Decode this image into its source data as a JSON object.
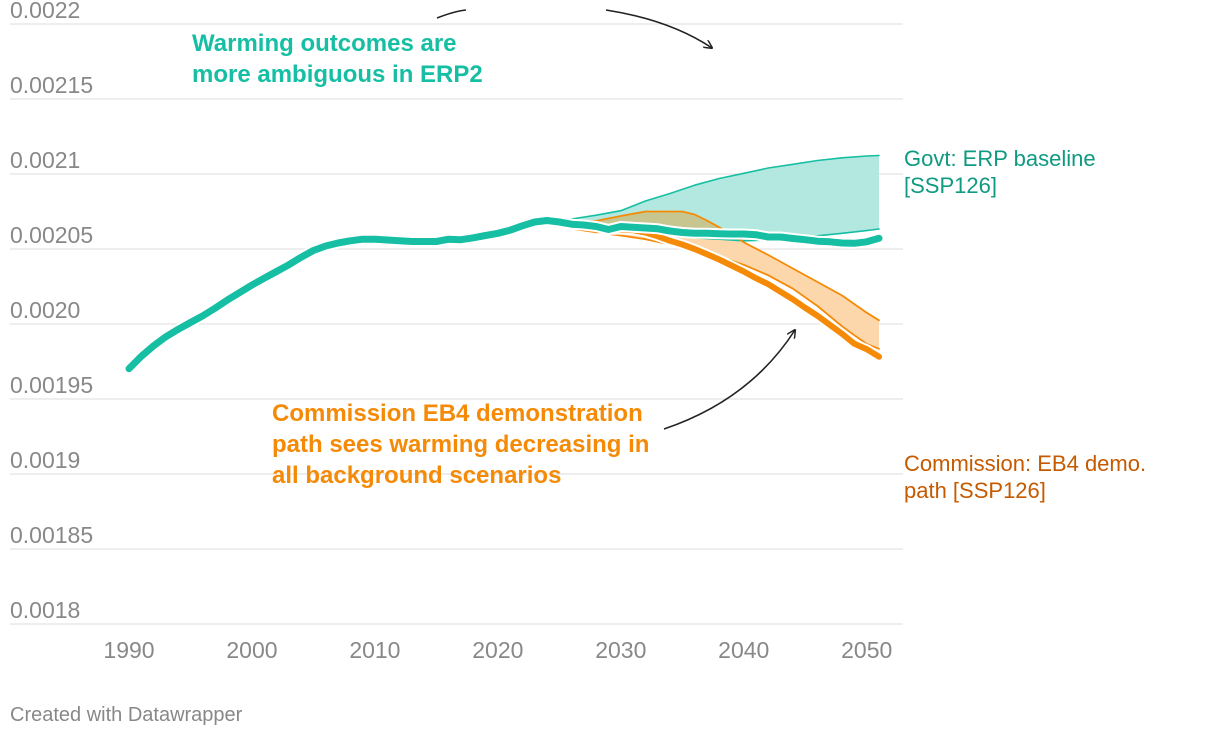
{
  "chart_data": {
    "type": "line",
    "title": "",
    "xlabel": "",
    "ylabel": "",
    "xlim": [
      1990,
      2051
    ],
    "ylim": [
      0.0018,
      0.0022
    ],
    "x_ticks": [
      1990,
      2000,
      2010,
      2020,
      2030,
      2040,
      2050
    ],
    "x_tick_labels": [
      "1990",
      "2000",
      "2010",
      "2020",
      "2030",
      "2040",
      "2050"
    ],
    "y_ticks": [
      0.0018,
      0.00185,
      0.0019,
      0.00195,
      0.002,
      0.00205,
      0.0021,
      0.00215,
      0.0022
    ],
    "y_tick_labels": [
      "0.0018",
      "0.00185",
      "0.0019",
      "0.00195",
      "0.0020",
      "0.00205",
      "0.0021",
      "0.00215",
      "0.0022"
    ],
    "grid": true,
    "colors": {
      "teal": "#16bfa3",
      "teal_dark": "#0f9a82",
      "teal_band": "#b2e8df",
      "orange": "#f58a07",
      "orange_band": "#fcd5a8",
      "orange_text": "#c55a00",
      "overlap_band": "#c7c690",
      "grid": "#e3e3e3",
      "annotation_arrow": "#222222"
    },
    "series": [
      {
        "name": "Govt: ERP baseline [SSP126]",
        "role": "main-teal",
        "x": [
          1990,
          1991,
          1992,
          1993,
          1994,
          1995,
          1996,
          1997,
          1998,
          1999,
          2000,
          2001,
          2002,
          2003,
          2004,
          2005,
          2006,
          2007,
          2008,
          2009,
          2010,
          2011,
          2012,
          2013,
          2014,
          2015,
          2016,
          2017,
          2018,
          2019,
          2020,
          2021,
          2022,
          2023,
          2024,
          2025,
          2026,
          2027,
          2028,
          2029,
          2030,
          2031,
          2032,
          2033,
          2034,
          2035,
          2036,
          2037,
          2038,
          2039,
          2040,
          2041,
          2042,
          2043,
          2044,
          2045,
          2046,
          2047,
          2048,
          2049,
          2050,
          2051
        ],
        "values": [
          0.0019702,
          0.0019785,
          0.0019855,
          0.0019915,
          0.0019965,
          0.002001,
          0.0020055,
          0.0020105,
          0.002016,
          0.002021,
          0.002026,
          0.0020305,
          0.002035,
          0.0020395,
          0.0020445,
          0.002049,
          0.002052,
          0.002054,
          0.0020555,
          0.0020565,
          0.0020565,
          0.002056,
          0.0020555,
          0.002055,
          0.002055,
          0.002055,
          0.0020565,
          0.0020562,
          0.0020575,
          0.002059,
          0.0020605,
          0.0020625,
          0.0020655,
          0.002068,
          0.002069,
          0.002068,
          0.0020665,
          0.002066,
          0.002065,
          0.002063,
          0.002065,
          0.0020645,
          0.002064,
          0.0020635,
          0.002062,
          0.002061,
          0.0020605,
          0.0020605,
          0.0020602,
          0.00206,
          0.00206,
          0.0020595,
          0.002058,
          0.002058,
          0.002057,
          0.0020562,
          0.0020552,
          0.0020548,
          0.002054,
          0.0020538,
          0.0020548,
          0.0020571
        ]
      },
      {
        "name": "ERP2 range upper",
        "role": "teal-upper",
        "x": [
          2024,
          2026,
          2028,
          2030,
          2032,
          2034,
          2036,
          2038,
          2040,
          2042,
          2044,
          2046,
          2048,
          2050,
          2051
        ],
        "values": [
          0.002069,
          0.00207,
          0.0020725,
          0.0020755,
          0.002082,
          0.002087,
          0.0020925,
          0.002097,
          0.0021005,
          0.002104,
          0.0021065,
          0.002109,
          0.0021108,
          0.002112,
          0.0021123
        ]
      },
      {
        "name": "ERP2 range lower",
        "role": "teal-lower",
        "x": [
          2024,
          2026,
          2028,
          2030,
          2032,
          2034,
          2036,
          2038,
          2040,
          2042,
          2044,
          2046,
          2048,
          2050,
          2051
        ],
        "values": [
          0.002068,
          0.0020665,
          0.0020625,
          0.0020607,
          0.0020595,
          0.0020588,
          0.0020575,
          0.0020565,
          0.0020555,
          0.002056,
          0.002057,
          0.0020588,
          0.0020605,
          0.0020623,
          0.0020633
        ]
      },
      {
        "name": "Commission: EB4 demo. path [SSP126]",
        "role": "main-orange",
        "x": [
          2024,
          2026,
          2028,
          2030,
          2031,
          2032,
          2033,
          2034,
          2035,
          2036,
          2037,
          2038,
          2039,
          2040,
          2041,
          2042,
          2043,
          2044,
          2045,
          2046,
          2047,
          2048,
          2049,
          2050,
          2051
        ],
        "values": [
          0.002068,
          0.002065,
          0.0020625,
          0.002063,
          0.0020625,
          0.002061,
          0.0020585,
          0.0020555,
          0.002053,
          0.00205,
          0.0020465,
          0.002043,
          0.002039,
          0.002035,
          0.0020305,
          0.0020265,
          0.0020215,
          0.0020165,
          0.0020108,
          0.0020055,
          0.0019995,
          0.0019935,
          0.0019868,
          0.0019832,
          0.0019782
        ]
      },
      {
        "name": "EB4 range upper",
        "role": "orange-upper",
        "x": [
          2024,
          2026,
          2028,
          2030,
          2032,
          2033,
          2034,
          2035,
          2036,
          2037,
          2038,
          2039,
          2040,
          2042,
          2044,
          2046,
          2048,
          2050,
          2051
        ],
        "values": [
          0.002068,
          0.002068,
          0.0020687,
          0.002072,
          0.002075,
          0.002075,
          0.002075,
          0.002075,
          0.002073,
          0.002069,
          0.0020645,
          0.00206,
          0.0020545,
          0.002046,
          0.002037,
          0.002028,
          0.002019,
          0.0020075,
          0.0020025
        ]
      },
      {
        "name": "EB4 range lower",
        "role": "orange-lower",
        "x": [
          2024,
          2026,
          2028,
          2030,
          2032,
          2034,
          2036,
          2038,
          2040,
          2042,
          2044,
          2046,
          2048,
          2049,
          2050,
          2051
        ],
        "values": [
          0.0020675,
          0.002065,
          0.002061,
          0.002059,
          0.0020565,
          0.002053,
          0.0020495,
          0.002045,
          0.0020395,
          0.0020325,
          0.0020235,
          0.002012,
          0.0019985,
          0.0019925,
          0.0019867,
          0.0019835
        ]
      }
    ]
  },
  "annotations": {
    "erp2_line1": "Warming outcomes are",
    "erp2_line2": "more ambiguous in ERP2",
    "eb4_line1": "Commission EB4 demonstration",
    "eb4_line2": "path sees warming decreasing in",
    "eb4_line3": "all background scenarios"
  },
  "end_labels": {
    "govt_line1": "Govt: ERP baseline",
    "govt_line2": "[SSP126]",
    "comm_line1": "Commission: EB4 demo.",
    "comm_line2": "path [SSP126]"
  },
  "footer": "Created with Datawrapper"
}
